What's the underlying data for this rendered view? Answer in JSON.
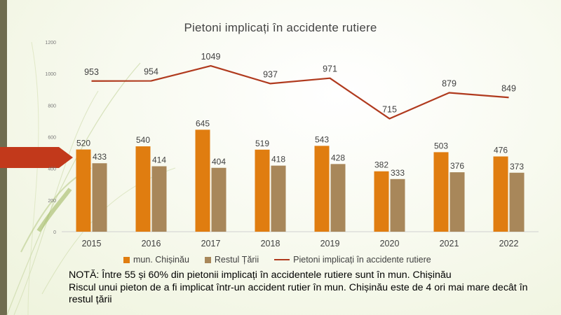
{
  "chart_data": {
    "type": "bar+line",
    "title": "Pietoni implicați în accidente rutiere",
    "categories": [
      "2015",
      "2016",
      "2017",
      "2018",
      "2019",
      "2020",
      "2021",
      "2022"
    ],
    "ylim": [
      0,
      1200
    ],
    "yticks": [
      "0",
      "200",
      "400",
      "600",
      "800",
      "1000",
      "1200"
    ],
    "series": [
      {
        "name": "mun. Chișinău",
        "type": "bar",
        "color": "#e07d10",
        "values": [
          520,
          540,
          645,
          519,
          543,
          382,
          503,
          476
        ]
      },
      {
        "name": "Restul Țării",
        "type": "bar",
        "color": "#a8875a",
        "values": [
          433,
          414,
          404,
          418,
          428,
          333,
          376,
          373
        ]
      },
      {
        "name": "Pietoni implicați în accidente rutiere",
        "type": "line",
        "color": "#b03a1e",
        "values": [
          953,
          954,
          1049,
          937,
          971,
          715,
          879,
          849
        ]
      }
    ],
    "legend_position": "bottom"
  },
  "note": {
    "line1": "NOTĂ: Între 55 și 60% din pietonii implicați în accidentele rutiere sunt în mun. Chișinău",
    "line2": "Riscul unui pieton de a fi implicat într-un accident rutier în mun. Chișinău este de 4 ori mai mare decât în restul țării"
  }
}
